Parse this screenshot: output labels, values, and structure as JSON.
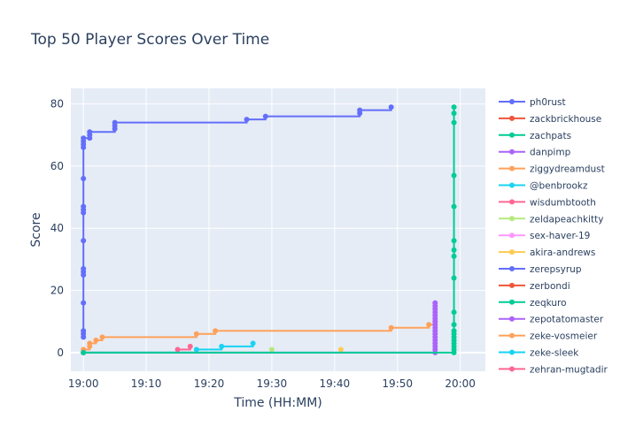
{
  "chart_data": {
    "type": "line",
    "title": "Top 50 Player Scores Over Time",
    "xlabel": "Time (HH:MM)",
    "ylabel": "Score",
    "x_unit": "HH:MM",
    "xlim": [
      "18:58",
      "20:04"
    ],
    "ylim": [
      -6,
      85
    ],
    "x_tick_labels": [
      "19:00",
      "19:10",
      "19:20",
      "19:30",
      "19:40",
      "19:50",
      "20:00"
    ],
    "y_tick_labels": [
      "0",
      "20",
      "40",
      "60",
      "80"
    ],
    "y_ticks": [
      0,
      20,
      40,
      60,
      80
    ],
    "grid": true,
    "legend_position": "right",
    "line_shape": "step",
    "series": [
      {
        "name": "ph0rust",
        "color": "#636efa",
        "points": [
          [
            "19:00",
            5
          ],
          [
            "19:00",
            6
          ],
          [
            "19:00",
            7
          ],
          [
            "19:00",
            16
          ],
          [
            "19:00",
            25
          ],
          [
            "19:00",
            26
          ],
          [
            "19:00",
            27
          ],
          [
            "19:00",
            36
          ],
          [
            "19:00",
            45
          ],
          [
            "19:00",
            46
          ],
          [
            "19:00",
            47
          ],
          [
            "19:00",
            56
          ],
          [
            "19:00",
            66
          ],
          [
            "19:00",
            67
          ],
          [
            "19:00",
            68
          ],
          [
            "19:00",
            69
          ],
          [
            "19:01",
            69
          ],
          [
            "19:01",
            70
          ],
          [
            "19:01",
            71
          ],
          [
            "19:05",
            72
          ],
          [
            "19:05",
            73
          ],
          [
            "19:05",
            74
          ],
          [
            "19:26",
            75
          ],
          [
            "19:29",
            76
          ],
          [
            "19:44",
            77
          ],
          [
            "19:44",
            78
          ],
          [
            "19:49",
            79
          ]
        ]
      },
      {
        "name": "zackbrickhouse",
        "color": "#EF553B",
        "points": []
      },
      {
        "name": "zachpats",
        "color": "#00cc96",
        "points": [
          [
            "19:00",
            0
          ],
          [
            "19:59",
            0
          ],
          [
            "19:59",
            1
          ],
          [
            "19:59",
            2
          ],
          [
            "19:59",
            3
          ],
          [
            "19:59",
            4
          ],
          [
            "19:59",
            5
          ],
          [
            "19:59",
            6
          ],
          [
            "19:59",
            7
          ],
          [
            "19:59",
            9
          ],
          [
            "19:59",
            13
          ],
          [
            "19:59",
            24
          ],
          [
            "19:59",
            31
          ],
          [
            "19:59",
            33
          ],
          [
            "19:59",
            36
          ],
          [
            "19:59",
            47
          ],
          [
            "19:59",
            57
          ],
          [
            "19:59",
            74
          ],
          [
            "19:59",
            77
          ],
          [
            "19:59",
            79
          ]
        ]
      },
      {
        "name": "danpimp",
        "color": "#ab63fa",
        "points": [
          [
            "19:00",
            0
          ],
          [
            "19:56",
            0
          ],
          [
            "19:56",
            1
          ],
          [
            "19:56",
            2
          ],
          [
            "19:56",
            3
          ],
          [
            "19:56",
            4
          ],
          [
            "19:56",
            5
          ],
          [
            "19:56",
            6
          ],
          [
            "19:56",
            7
          ],
          [
            "19:56",
            8
          ],
          [
            "19:56",
            9
          ],
          [
            "19:56",
            10
          ],
          [
            "19:56",
            11
          ],
          [
            "19:56",
            12
          ],
          [
            "19:56",
            13
          ],
          [
            "19:56",
            14
          ],
          [
            "19:56",
            15
          ],
          [
            "19:56",
            16
          ]
        ]
      },
      {
        "name": "ziggydreamdust",
        "color": "#FFA15A",
        "points": [
          [
            "19:00",
            0
          ],
          [
            "19:00",
            1
          ],
          [
            "19:01",
            2
          ],
          [
            "19:01",
            3
          ],
          [
            "19:02",
            4
          ],
          [
            "19:03",
            5
          ],
          [
            "19:18",
            6
          ],
          [
            "19:21",
            7
          ],
          [
            "19:49",
            8
          ],
          [
            "19:55",
            9
          ],
          [
            "19:56",
            10
          ]
        ]
      },
      {
        "name": "@benbrookz",
        "color": "#19d3f3",
        "points": [
          [
            "19:00",
            0
          ],
          [
            "19:18",
            1
          ],
          [
            "19:22",
            2
          ],
          [
            "19:27",
            3
          ]
        ]
      },
      {
        "name": "wisdumbtooth",
        "color": "#FF6692",
        "points": [
          [
            "19:15",
            1
          ],
          [
            "19:17",
            2
          ]
        ]
      },
      {
        "name": "zeldapeachkitty",
        "color": "#B6E880",
        "points": [
          [
            "19:00",
            0
          ],
          [
            "19:30",
            1
          ]
        ]
      },
      {
        "name": "sex-haver-19",
        "color": "#FF97FF",
        "points": []
      },
      {
        "name": "akira-andrews",
        "color": "#FECB52",
        "points": [
          [
            "19:41",
            1
          ]
        ]
      },
      {
        "name": "zerepsyrup",
        "color": "#636efa",
        "points": []
      },
      {
        "name": "zerbondi",
        "color": "#EF553B",
        "points": []
      },
      {
        "name": "zeqkuro",
        "color": "#00cc96",
        "points": []
      },
      {
        "name": "zepotatomaster",
        "color": "#ab63fa",
        "points": []
      },
      {
        "name": "zeke-vosmeier",
        "color": "#FFA15A",
        "points": []
      },
      {
        "name": "zeke-sleek",
        "color": "#19d3f3",
        "points": []
      },
      {
        "name": "zehran-mugtadir",
        "color": "#FF6692",
        "points": []
      }
    ]
  }
}
